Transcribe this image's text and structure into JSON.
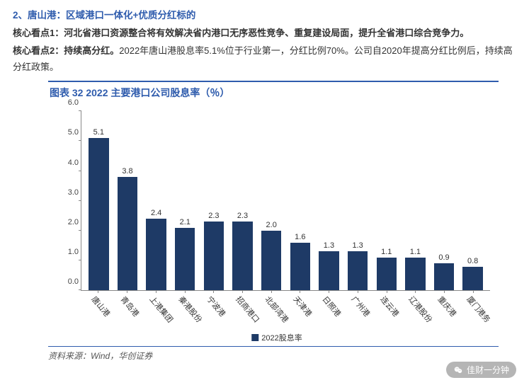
{
  "heading": "2、唐山港：区域港口一体化+优质分红标的",
  "view1": {
    "label": "核心看点1：",
    "body": "河北省港口资源整合将有效解决省内港口无序恶性竞争、重复建设局面，提升全省港口综合竞争力。"
  },
  "view2": {
    "label": "核心看点2：",
    "label2": "持续高分红。",
    "body": "2022年唐山港股息率5.1%位于行业第一，分红比例70%。公司自2020年提高分红比例后，持续高分红政策。"
  },
  "chart": {
    "title": "图表 32   2022 主要港口公司股息率（％）",
    "type": "bar",
    "ymax": 6.0,
    "yticks": [
      "0.0",
      "1.0",
      "2.0",
      "3.0",
      "4.0",
      "5.0",
      "6.0"
    ],
    "bar_color": "#1e3a66",
    "axis_color": "#888888",
    "background_color": "#ffffff",
    "legend_label": "2022股息率",
    "categories": [
      "唐山港",
      "青岛港",
      "上港集团",
      "秦港股份",
      "宁波港",
      "招商港口",
      "北部湾港",
      "天津港",
      "日照港",
      "广州港",
      "连云港",
      "辽港股份",
      "重庆港",
      "厦门港务"
    ],
    "values": [
      5.1,
      3.8,
      2.4,
      2.1,
      2.3,
      2.3,
      2.0,
      1.6,
      1.3,
      1.3,
      1.1,
      1.1,
      0.9,
      0.8
    ],
    "value_labels": [
      "5.1",
      "3.8",
      "2.4",
      "2.1",
      "2.3",
      "2.3",
      "2.0",
      "1.6",
      "1.3",
      "1.3",
      "1.1",
      "1.1",
      "0.9",
      "0.8"
    ],
    "value_fontsize": 11,
    "label_fontsize": 11,
    "bar_width_pct": 70
  },
  "source": "资料来源：Wind，华创证券",
  "watermark": "佳财一分钟"
}
